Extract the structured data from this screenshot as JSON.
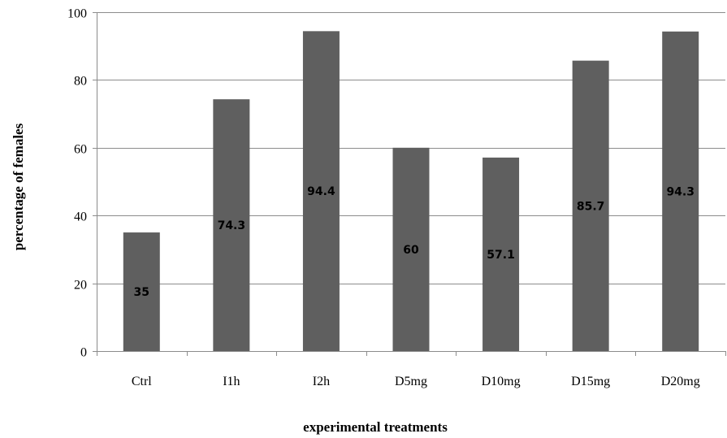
{
  "chart_data": {
    "type": "bar",
    "categories": [
      "Ctrl",
      "I1h",
      "I2h",
      "D5mg",
      "D10mg",
      "D15mg",
      "D20mg"
    ],
    "values": [
      35,
      74.3,
      94.4,
      60,
      57.1,
      85.7,
      94.3
    ],
    "data_labels": [
      "35",
      "74.3",
      "94.4",
      "60",
      "57.1",
      "85.7",
      "94.3"
    ],
    "xlabel": "experimental treatments",
    "ylabel": "percentage of females",
    "ylim": [
      0,
      100
    ],
    "yticks": [
      "0",
      "20",
      "40",
      "60",
      "80",
      "100"
    ],
    "grid": true,
    "bar_color": "#5f5f5f"
  }
}
